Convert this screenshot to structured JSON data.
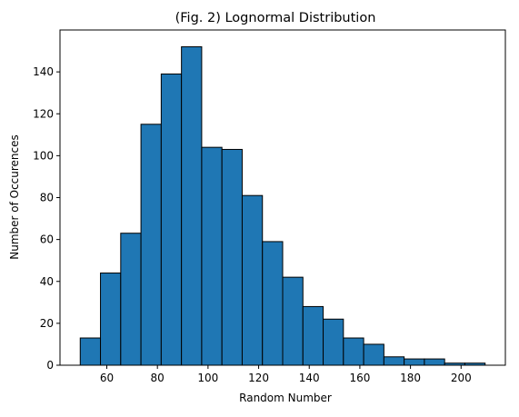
{
  "chart_data": {
    "type": "bar",
    "title": "(Fig. 2) Lognormal Distribution",
    "xlabel": "Random Number",
    "ylabel": "Number of Occurences",
    "bin_edges": [
      49.5,
      57.5,
      65.5,
      73.5,
      81.5,
      89.5,
      97.5,
      105.5,
      113.5,
      121.5,
      129.5,
      137.5,
      145.5,
      153.5,
      161.5,
      169.5,
      177.5,
      185.5,
      193.5,
      201.5,
      209.5
    ],
    "values": [
      13,
      44,
      63,
      115,
      139,
      152,
      104,
      103,
      81,
      59,
      42,
      28,
      22,
      13,
      10,
      4,
      3,
      3,
      1,
      1
    ],
    "xlim": [
      41.5,
      217.5
    ],
    "ylim": [
      0,
      160
    ],
    "xticks": [
      60,
      80,
      100,
      120,
      140,
      160,
      180,
      200
    ],
    "yticks": [
      0,
      20,
      40,
      60,
      80,
      100,
      120,
      140
    ],
    "bar_color": "#1f77b4",
    "edge_color": "#000000",
    "grid": false,
    "legend": false
  }
}
